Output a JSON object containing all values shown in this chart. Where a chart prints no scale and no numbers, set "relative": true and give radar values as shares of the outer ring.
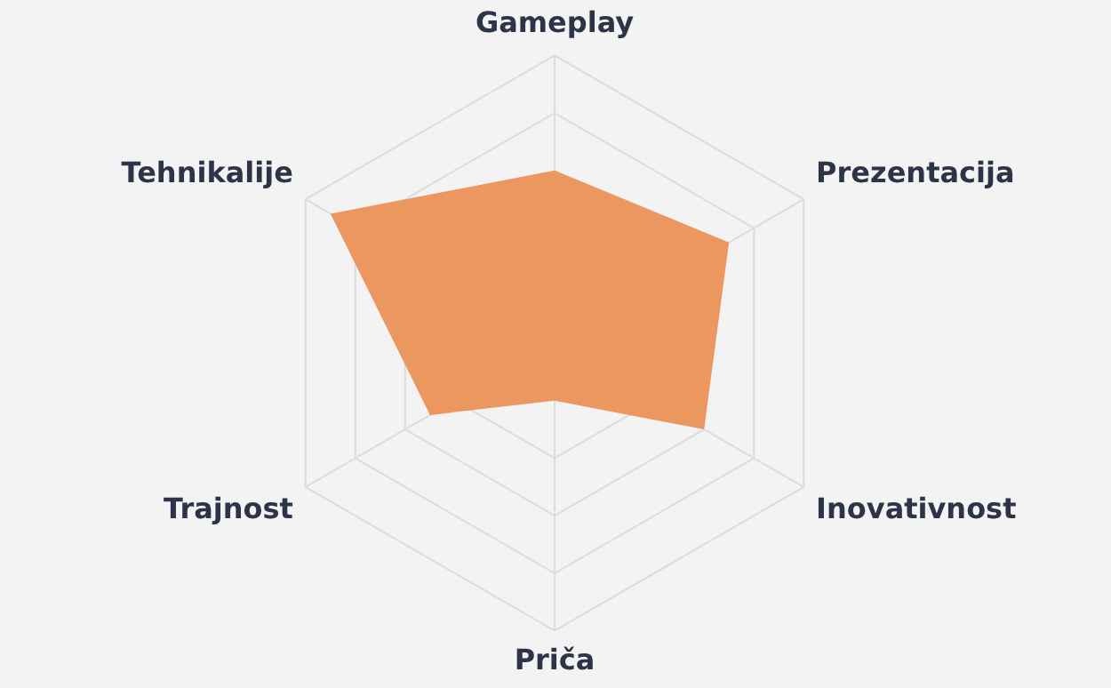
{
  "chart_data": {
    "type": "radar",
    "relative": true,
    "categories": [
      "Gameplay",
      "Prezentacija",
      "Inovativnost",
      "Priča",
      "Trajnost",
      "Tehnikalije"
    ],
    "series": [
      {
        "color": "#ec9660",
        "values": [
          0.6,
          0.7,
          0.6,
          0.2,
          0.5,
          0.9
        ]
      }
    ],
    "grid": true,
    "legend": false,
    "marker": "none"
  }
}
